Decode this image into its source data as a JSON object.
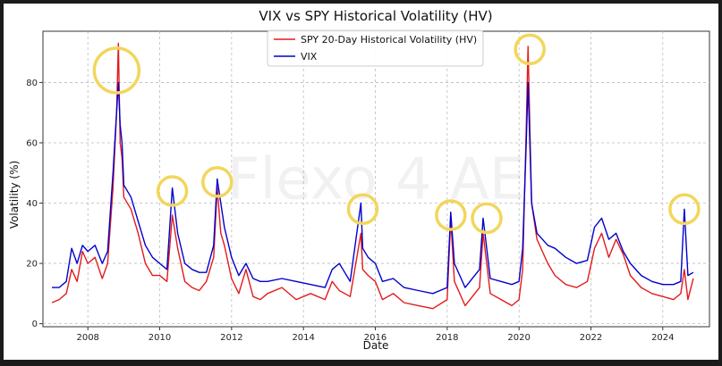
{
  "chart_data": {
    "type": "line",
    "title": "VIX vs SPY Historical Volatility (HV)",
    "xlabel": "Date",
    "ylabel": "Volatility (%)",
    "xlim": [
      2006.75,
      2025.3
    ],
    "ylim": [
      -1,
      97
    ],
    "grid": true,
    "legend_position": "top-center",
    "watermark": "Flexo 4 AE",
    "x_ticks": [
      2008,
      2010,
      2012,
      2014,
      2016,
      2018,
      2020,
      2022,
      2024
    ],
    "y_ticks": [
      0,
      20,
      40,
      60,
      80
    ],
    "series": [
      {
        "name": "SPY 20-Day Historical Volatility (HV)",
        "color": "#e31a1c",
        "x": [
          2007.0,
          2007.2,
          2007.4,
          2007.55,
          2007.7,
          2007.85,
          2008.0,
          2008.2,
          2008.4,
          2008.55,
          2008.7,
          2008.8,
          2008.85,
          2008.9,
          2008.95,
          2009.0,
          2009.2,
          2009.4,
          2009.6,
          2009.8,
          2010.0,
          2010.2,
          2010.35,
          2010.5,
          2010.7,
          2010.9,
          2011.1,
          2011.3,
          2011.5,
          2011.6,
          2011.7,
          2011.8,
          2012.0,
          2012.2,
          2012.4,
          2012.6,
          2012.8,
          2013.0,
          2013.4,
          2013.8,
          2014.2,
          2014.6,
          2014.8,
          2015.0,
          2015.3,
          2015.6,
          2015.65,
          2015.8,
          2016.0,
          2016.2,
          2016.5,
          2016.8,
          2017.2,
          2017.6,
          2018.0,
          2018.1,
          2018.2,
          2018.5,
          2018.9,
          2019.0,
          2019.2,
          2019.5,
          2019.8,
          2020.0,
          2020.1,
          2020.2,
          2020.25,
          2020.35,
          2020.5,
          2020.8,
          2021.0,
          2021.3,
          2021.6,
          2021.9,
          2022.1,
          2022.3,
          2022.5,
          2022.7,
          2022.9,
          2023.1,
          2023.4,
          2023.7,
          2024.0,
          2024.3,
          2024.5,
          2024.6,
          2024.7,
          2024.85
        ],
        "values": [
          7,
          8,
          10,
          18,
          14,
          24,
          20,
          22,
          15,
          20,
          45,
          70,
          93,
          60,
          55,
          42,
          38,
          30,
          20,
          16,
          16,
          14,
          36,
          25,
          14,
          12,
          11,
          14,
          22,
          45,
          30,
          26,
          15,
          10,
          18,
          9,
          8,
          10,
          12,
          8,
          10,
          8,
          14,
          11,
          9,
          30,
          18,
          16,
          14,
          8,
          10,
          7,
          6,
          5,
          8,
          35,
          14,
          6,
          12,
          30,
          10,
          8,
          6,
          8,
          18,
          65,
          92,
          40,
          28,
          20,
          16,
          13,
          12,
          14,
          25,
          30,
          22,
          28,
          23,
          16,
          12,
          10,
          9,
          8,
          10,
          18,
          8,
          15
        ]
      },
      {
        "name": "VIX",
        "color": "#0000cc",
        "x": [
          2007.0,
          2007.2,
          2007.4,
          2007.55,
          2007.7,
          2007.85,
          2008.0,
          2008.2,
          2008.4,
          2008.55,
          2008.7,
          2008.8,
          2008.85,
          2008.9,
          2008.95,
          2009.0,
          2009.2,
          2009.4,
          2009.6,
          2009.8,
          2010.0,
          2010.2,
          2010.35,
          2010.5,
          2010.7,
          2010.9,
          2011.1,
          2011.3,
          2011.5,
          2011.6,
          2011.7,
          2011.8,
          2012.0,
          2012.2,
          2012.4,
          2012.6,
          2012.8,
          2013.0,
          2013.4,
          2013.8,
          2014.2,
          2014.6,
          2014.8,
          2015.0,
          2015.3,
          2015.6,
          2015.65,
          2015.8,
          2016.0,
          2016.2,
          2016.5,
          2016.8,
          2017.2,
          2017.6,
          2018.0,
          2018.1,
          2018.2,
          2018.5,
          2018.9,
          2019.0,
          2019.2,
          2019.5,
          2019.8,
          2020.0,
          2020.1,
          2020.2,
          2020.25,
          2020.35,
          2020.5,
          2020.8,
          2021.0,
          2021.3,
          2021.6,
          2021.9,
          2022.1,
          2022.3,
          2022.5,
          2022.7,
          2022.9,
          2023.1,
          2023.4,
          2023.7,
          2024.0,
          2024.3,
          2024.5,
          2024.6,
          2024.7,
          2024.85
        ],
        "values": [
          12,
          12,
          14,
          25,
          20,
          26,
          24,
          26,
          20,
          24,
          50,
          70,
          80,
          66,
          60,
          46,
          42,
          34,
          26,
          22,
          20,
          18,
          45,
          30,
          20,
          18,
          17,
          17,
          26,
          48,
          40,
          32,
          22,
          16,
          20,
          15,
          14,
          14,
          15,
          14,
          13,
          12,
          18,
          20,
          14,
          40,
          25,
          22,
          20,
          14,
          15,
          12,
          11,
          10,
          12,
          37,
          20,
          12,
          18,
          35,
          15,
          14,
          13,
          14,
          25,
          60,
          80,
          40,
          30,
          26,
          25,
          22,
          20,
          21,
          32,
          35,
          28,
          30,
          24,
          20,
          16,
          14,
          13,
          13,
          14,
          38,
          16,
          17
        ]
      }
    ],
    "highlight_circles": [
      {
        "x": 2008.8,
        "y": 84,
        "size": "large"
      },
      {
        "x": 2010.35,
        "y": 44,
        "size": "small"
      },
      {
        "x": 2011.6,
        "y": 47,
        "size": "small"
      },
      {
        "x": 2015.65,
        "y": 38,
        "size": "small"
      },
      {
        "x": 2018.1,
        "y": 36,
        "size": "small"
      },
      {
        "x": 2019.1,
        "y": 35,
        "size": "small"
      },
      {
        "x": 2020.3,
        "y": 91,
        "size": "small"
      },
      {
        "x": 2024.6,
        "y": 38,
        "size": "small"
      }
    ]
  }
}
